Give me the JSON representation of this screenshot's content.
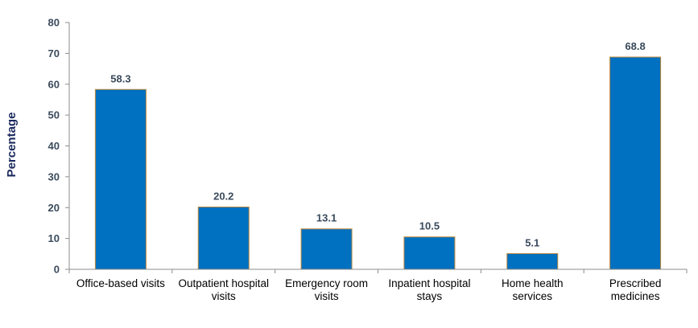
{
  "chart_data": {
    "type": "bar",
    "title": "",
    "xlabel": "",
    "ylabel": "Percentage",
    "ylim": [
      0,
      80
    ],
    "yticks": [
      0,
      10,
      20,
      30,
      40,
      50,
      60,
      70,
      80
    ],
    "grid": false,
    "legend": "none",
    "categories": [
      [
        "Office-based visits"
      ],
      [
        "Outpatient hospital",
        "visits"
      ],
      [
        "Emergency room",
        "visits"
      ],
      [
        "Inpatient hospital",
        "stays"
      ],
      [
        "Home health",
        "services"
      ],
      [
        "Prescribed",
        "medicines"
      ]
    ],
    "values": [
      58.3,
      20.2,
      13.1,
      10.5,
      5.1,
      68.8
    ],
    "data_labels": [
      "58.3",
      "20.2",
      "13.1",
      "10.5",
      "5.1",
      "68.8"
    ],
    "colors": {
      "bar": "#0070c0",
      "bar_border": "#c08a3e",
      "axis": "#8c8c8c"
    }
  }
}
